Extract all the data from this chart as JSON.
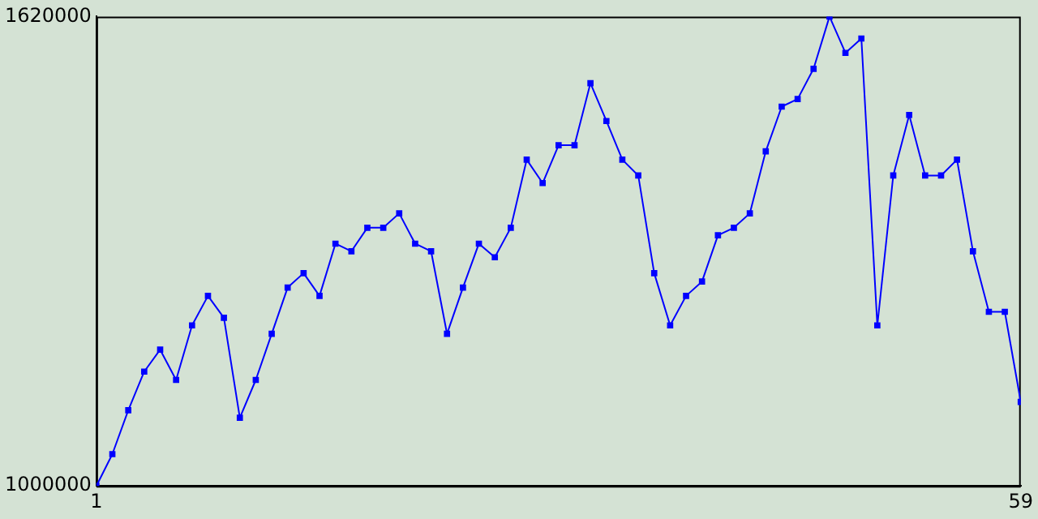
{
  "chart_data": {
    "type": "line",
    "x": [
      1,
      2,
      3,
      4,
      5,
      6,
      7,
      8,
      9,
      10,
      11,
      12,
      13,
      14,
      15,
      16,
      17,
      18,
      19,
      20,
      21,
      22,
      23,
      24,
      25,
      26,
      27,
      28,
      29,
      30,
      31,
      32,
      33,
      34,
      35,
      36,
      37,
      38,
      39,
      40,
      41,
      42,
      43,
      44,
      45,
      46,
      47,
      48,
      49,
      50,
      51,
      52,
      53,
      54,
      55,
      56,
      57,
      58,
      59
    ],
    "series": [
      {
        "color": "#0000ff",
        "values": [
          1000000,
          1042000,
          1100000,
          1151000,
          1180000,
          1140000,
          1212000,
          1251000,
          1222000,
          1090000,
          1140000,
          1201000,
          1262000,
          1281000,
          1251000,
          1320000,
          1310000,
          1341000,
          1341000,
          1360000,
          1320000,
          1310000,
          1201000,
          1262000,
          1320000,
          1302000,
          1341000,
          1431000,
          1400000,
          1450000,
          1450000,
          1532000,
          1482000,
          1431000,
          1410000,
          1281000,
          1212000,
          1251000,
          1270000,
          1331000,
          1341000,
          1360000,
          1442000,
          1501000,
          1511000,
          1551000,
          1620000,
          1572000,
          1591000,
          1212000,
          1410000,
          1490000,
          1410000,
          1410000,
          1431000,
          1310000,
          1230000,
          1230000,
          1111000
        ]
      }
    ],
    "xlim": [
      1,
      59
    ],
    "xticks": [
      1,
      59
    ],
    "ylim": [
      1000000,
      1620000
    ],
    "yticks": [
      1000000,
      1620000
    ],
    "grid": false,
    "legend": false,
    "marker": "square",
    "line_style": "solid"
  }
}
